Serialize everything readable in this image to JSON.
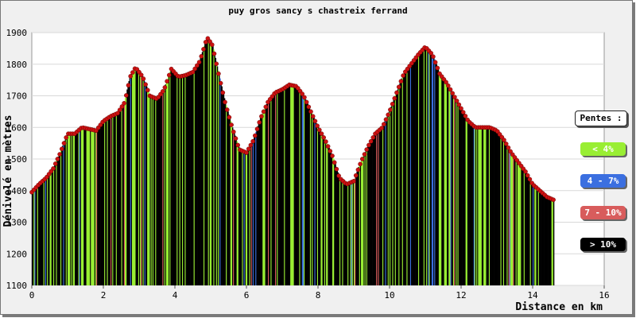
{
  "chart_data": {
    "type": "area",
    "title": "puy gros sancy s chastreix ferrand",
    "xlabel": "Distance en km",
    "ylabel": "Dénivelé en mètres",
    "xlim": [
      0,
      16
    ],
    "ylim": [
      1100,
      1900
    ],
    "x_ticks": [
      "0",
      "2",
      "4",
      "6",
      "8",
      "10",
      "12",
      "14",
      "16"
    ],
    "y_ticks": [
      "1100",
      "1200",
      "1300",
      "1400",
      "1500",
      "1600",
      "1700",
      "1800",
      "1900"
    ],
    "grid": "horizontal",
    "legend_position": "right",
    "legend_title": "Pentes :",
    "legend": [
      {
        "label": "< 4%",
        "color": "#99ee33"
      },
      {
        "label": "4 - 7%",
        "color": "#3b6fe0"
      },
      {
        "label": "7 - 10%",
        "color": "#d85c5c"
      },
      {
        "label": "> 10%",
        "color": "#000000"
      }
    ],
    "marker_color": "#cc1111",
    "profile": [
      [
        0.0,
        1395
      ],
      [
        0.2,
        1420
      ],
      [
        0.4,
        1440
      ],
      [
        0.6,
        1470
      ],
      [
        0.8,
        1520
      ],
      [
        1.0,
        1580
      ],
      [
        1.2,
        1580
      ],
      [
        1.4,
        1600
      ],
      [
        1.6,
        1595
      ],
      [
        1.8,
        1590
      ],
      [
        2.0,
        1620
      ],
      [
        2.2,
        1635
      ],
      [
        2.4,
        1645
      ],
      [
        2.6,
        1680
      ],
      [
        2.75,
        1760
      ],
      [
        2.9,
        1790
      ],
      [
        3.1,
        1760
      ],
      [
        3.3,
        1700
      ],
      [
        3.5,
        1690
      ],
      [
        3.7,
        1720
      ],
      [
        3.9,
        1785
      ],
      [
        4.1,
        1760
      ],
      [
        4.3,
        1765
      ],
      [
        4.5,
        1775
      ],
      [
        4.7,
        1810
      ],
      [
        4.9,
        1885
      ],
      [
        5.05,
        1860
      ],
      [
        5.2,
        1780
      ],
      [
        5.4,
        1680
      ],
      [
        5.6,
        1600
      ],
      [
        5.8,
        1530
      ],
      [
        6.0,
        1520
      ],
      [
        6.2,
        1560
      ],
      [
        6.4,
        1630
      ],
      [
        6.6,
        1680
      ],
      [
        6.8,
        1710
      ],
      [
        7.0,
        1720
      ],
      [
        7.2,
        1735
      ],
      [
        7.4,
        1730
      ],
      [
        7.6,
        1700
      ],
      [
        7.8,
        1650
      ],
      [
        8.0,
        1600
      ],
      [
        8.2,
        1560
      ],
      [
        8.4,
        1510
      ],
      [
        8.6,
        1440
      ],
      [
        8.8,
        1420
      ],
      [
        9.0,
        1430
      ],
      [
        9.2,
        1490
      ],
      [
        9.4,
        1540
      ],
      [
        9.6,
        1580
      ],
      [
        9.8,
        1600
      ],
      [
        10.0,
        1650
      ],
      [
        10.2,
        1710
      ],
      [
        10.4,
        1770
      ],
      [
        10.6,
        1800
      ],
      [
        10.8,
        1830
      ],
      [
        11.0,
        1855
      ],
      [
        11.2,
        1830
      ],
      [
        11.4,
        1770
      ],
      [
        11.6,
        1740
      ],
      [
        11.8,
        1700
      ],
      [
        12.0,
        1660
      ],
      [
        12.2,
        1620
      ],
      [
        12.4,
        1600
      ],
      [
        12.6,
        1600
      ],
      [
        12.8,
        1600
      ],
      [
        13.0,
        1590
      ],
      [
        13.2,
        1560
      ],
      [
        13.4,
        1520
      ],
      [
        13.6,
        1490
      ],
      [
        13.8,
        1460
      ],
      [
        14.0,
        1420
      ],
      [
        14.2,
        1400
      ],
      [
        14.4,
        1380
      ],
      [
        14.6,
        1370
      ]
    ]
  }
}
